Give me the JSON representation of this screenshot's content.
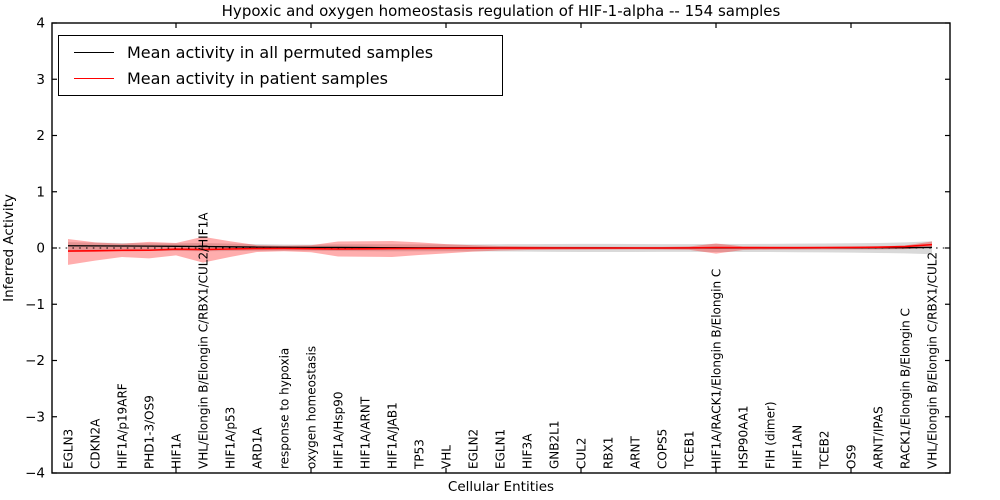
{
  "figure": {
    "title": "Hypoxic and oxygen homeostasis regulation of HIF-1-alpha -- 154 samples",
    "xlabel": "Cellular Entities",
    "ylabel": "Inferred Activity"
  },
  "legend": {
    "entries": [
      {
        "label": "Mean activity in all permuted samples",
        "color": "#000000"
      },
      {
        "label": "Mean activity in patient samples",
        "color": "#ff0000"
      }
    ]
  },
  "chart_data": {
    "type": "line",
    "title": "Hypoxic and oxygen homeostasis regulation of HIF-1-alpha -- 154 samples",
    "xlabel": "Cellular Entities",
    "ylabel": "Inferred Activity",
    "ylim": [
      -4,
      4
    ],
    "yticks": [
      4,
      3,
      2,
      1,
      0,
      -1,
      -2,
      -3,
      -4
    ],
    "grid": false,
    "legend_position": "upper left",
    "zero_line_style": "dotted",
    "categories": [
      "EGLN3",
      "CDKN2A",
      "HIF1A/p19ARF",
      "PHD1-3/OS9",
      "HIF1A",
      "VHL/Elongin B/Elongin C/RBX1/CUL2/HIF1A",
      "HIF1A/p53",
      "ARD1A",
      "response to hypoxia",
      "oxygen homeostasis",
      "HIF1A/Hsp90",
      "HIF1A/ARNT",
      "HIF1A/JAB1",
      "TP53",
      "VHL",
      "EGLN2",
      "EGLN1",
      "HIF3A",
      "GNB2L1",
      "CUL2",
      "RBX1",
      "ARNT",
      "COPS5",
      "TCEB1",
      "HIF1A/RACK1/Elongin B/Elongin C",
      "HSP90AA1",
      "FIH (dimer)",
      "HIF1AN",
      "TCEB2",
      "OS9",
      "ARNT/IPAS",
      "RACK1/Elongin B/Elongin C",
      "VHL/Elongin B/Elongin C/RBX1/CUL2"
    ],
    "series": [
      {
        "name": "Mean activity in all permuted samples",
        "key": "permuted",
        "color": "#000000",
        "line_width": 1.3,
        "band_color": "rgba(128,128,128,0.30)",
        "values": [
          0.04,
          0.038,
          0.036,
          0.034,
          0.03,
          0.026,
          0.021,
          0.016,
          0.013,
          0.011,
          0.01,
          0.008,
          0.006,
          0.005,
          0.004,
          0.003,
          0.002,
          0.002,
          0.001,
          0.001,
          0.001,
          0.0,
          0.0,
          0.0,
          0.0,
          0.0,
          0.0,
          0.0,
          0.002,
          0.003,
          0.004,
          0.006,
          0.01
        ],
        "band_upper": [
          0.105,
          0.095,
          0.088,
          0.085,
          0.082,
          0.09,
          0.078,
          0.068,
          0.062,
          0.06,
          0.065,
          0.066,
          0.066,
          0.065,
          0.065,
          0.065,
          0.067,
          0.07,
          0.072,
          0.074,
          0.074,
          0.072,
          0.07,
          0.07,
          0.073,
          0.072,
          0.074,
          0.077,
          0.08,
          0.084,
          0.09,
          0.1,
          0.12
        ],
        "band_lower": [
          -0.06,
          -0.056,
          -0.052,
          -0.05,
          -0.05,
          -0.058,
          -0.054,
          -0.05,
          -0.048,
          -0.048,
          -0.053,
          -0.055,
          -0.058,
          -0.058,
          -0.058,
          -0.06,
          -0.062,
          -0.065,
          -0.068,
          -0.07,
          -0.07,
          -0.07,
          -0.068,
          -0.068,
          -0.07,
          -0.07,
          -0.072,
          -0.075,
          -0.078,
          -0.082,
          -0.088,
          -0.096,
          -0.11
        ]
      },
      {
        "name": "Mean activity in patient samples",
        "key": "patient",
        "color": "#ff0000",
        "line_width": 1.6,
        "band_color": "rgba(255,0,0,0.32)",
        "values": [
          -0.055,
          -0.05,
          -0.042,
          -0.04,
          -0.022,
          -0.028,
          -0.018,
          -0.01,
          -0.008,
          -0.012,
          -0.018,
          -0.014,
          -0.01,
          -0.008,
          -0.005,
          -0.004,
          -0.002,
          -0.001,
          0.0,
          0.0,
          0.0,
          0.0,
          0.0,
          0.002,
          0.008,
          0.005,
          0.005,
          0.006,
          0.008,
          0.01,
          0.014,
          0.025,
          0.06
        ],
        "band_upper": [
          0.16,
          0.1,
          0.075,
          0.11,
          0.09,
          0.2,
          0.12,
          0.05,
          0.04,
          0.05,
          0.115,
          0.12,
          0.125,
          0.1,
          0.07,
          0.05,
          0.035,
          0.03,
          0.025,
          0.022,
          0.02,
          0.02,
          0.02,
          0.026,
          0.08,
          0.03,
          0.025,
          0.022,
          0.02,
          0.024,
          0.03,
          0.045,
          0.115
        ],
        "band_lower": [
          -0.3,
          -0.225,
          -0.16,
          -0.185,
          -0.13,
          -0.26,
          -0.16,
          -0.07,
          -0.058,
          -0.075,
          -0.15,
          -0.155,
          -0.16,
          -0.125,
          -0.095,
          -0.065,
          -0.045,
          -0.035,
          -0.03,
          -0.028,
          -0.026,
          -0.025,
          -0.026,
          -0.032,
          -0.1,
          -0.035,
          -0.028,
          -0.026,
          -0.025,
          -0.025,
          -0.024,
          -0.02,
          0.005
        ]
      }
    ]
  }
}
